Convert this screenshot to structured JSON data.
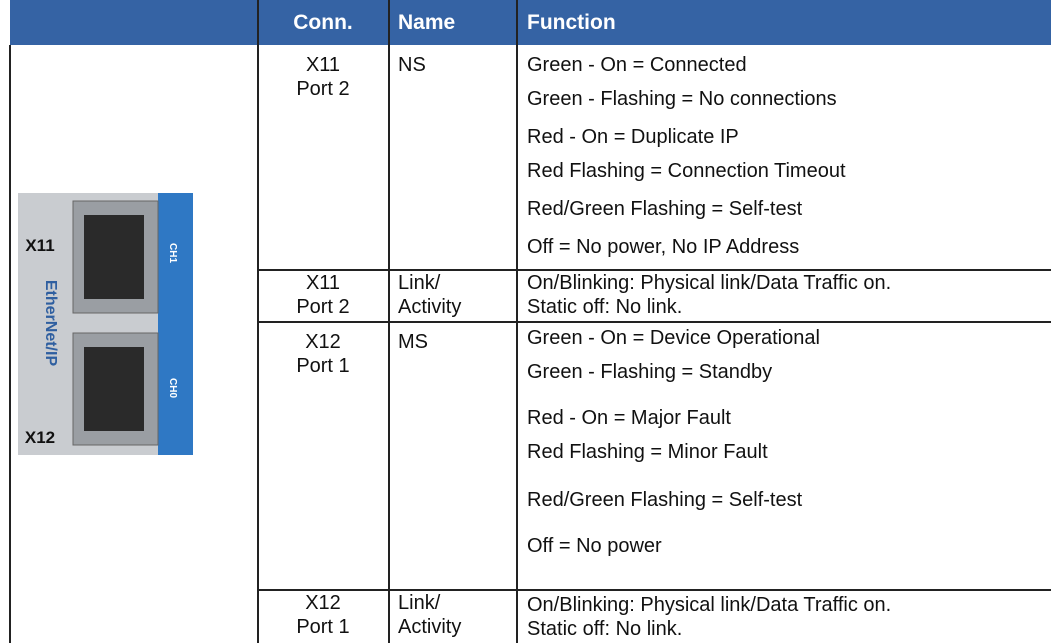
{
  "table": {
    "header": [
      "Conn.",
      "Name",
      "Function"
    ],
    "rows": [
      {
        "conn": [
          "X11",
          "Port 2"
        ],
        "name": [
          "NS"
        ],
        "function": [
          "Green - On = Connected",
          "Green - Flashing = No connections",
          "Red - On = Duplicate IP",
          "Red Flashing = Connection Timeout",
          "Red/Green Flashing = Self-test",
          "Off = No power, No IP Address"
        ]
      },
      {
        "conn": [
          "X11",
          "Port 2"
        ],
        "name": [
          "Link/",
          "Activity"
        ],
        "function": [
          "On/Blinking: Physical link/Data Traffic on.",
          "Static off: No link."
        ]
      },
      {
        "conn": [
          "X12",
          "Port 1"
        ],
        "name": [
          "MS"
        ],
        "function": [
          "Green - On = Device Operational",
          "Green - Flashing = Standby",
          "Red - On = Major Fault",
          "Red Flashing = Minor Fault",
          "Red/Green Flashing = Self-test",
          "Off = No power"
        ]
      },
      {
        "conn": [
          "X12",
          "Port 1"
        ],
        "name": [
          "Link/",
          "Activity"
        ],
        "function": [
          "On/Blinking: Physical link/Data Traffic on.",
          "Static off: No link."
        ]
      }
    ]
  },
  "image": {
    "labels": [
      "X11",
      "X12",
      "EtherNet/IP",
      "CH1",
      "CH0"
    ]
  }
}
